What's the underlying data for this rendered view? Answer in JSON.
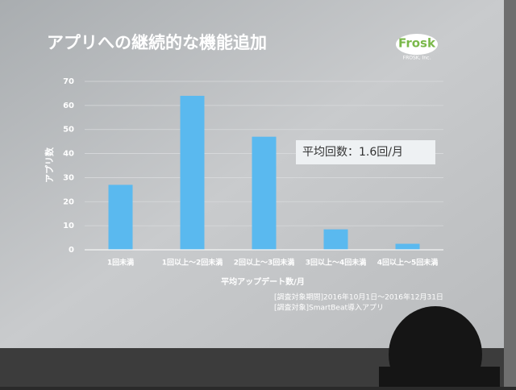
{
  "chart_data": {
    "type": "bar",
    "title": "アプリへの継続的な機能追加",
    "logo": "Frosk",
    "logo_sub": "FROSK, Inc.",
    "y_label": "アプリ数",
    "x_label": "平均アップデート数/月",
    "categories": [
      "1回未満",
      "1回以上～2回未満",
      "2回以上～3回未満",
      "3回以上～4回未満",
      "4回以上～5回未満"
    ],
    "values": [
      27,
      64,
      47,
      8.5,
      2.5
    ],
    "color": "#5ab9ef",
    "ylim": [
      0,
      70
    ],
    "yticks": [
      0,
      10,
      20,
      30,
      40,
      50,
      60,
      70
    ],
    "grid": true,
    "annotation": "平均回数：1.6回/月",
    "notes": [
      "[調査対象期間]2016年10月1日～2016年12月31日",
      "[調査対象]SmartBeat導入アプリ"
    ]
  }
}
